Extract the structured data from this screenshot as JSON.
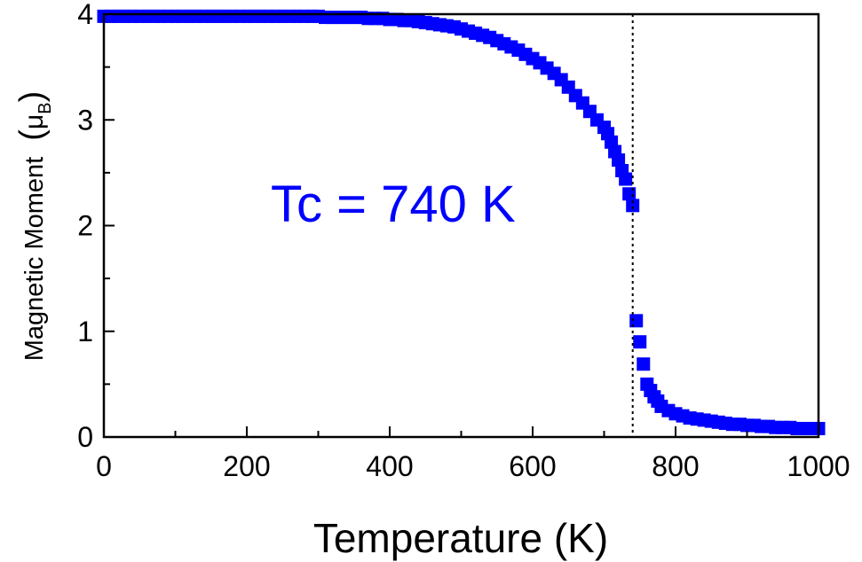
{
  "chart_data": {
    "type": "scatter",
    "title": "",
    "xlabel": "Temperature (K)",
    "ylabel": "Magnetic Moment",
    "ylabel_unit_symbol": "μ",
    "ylabel_unit_subscript": "B",
    "xlim": [
      0,
      1000
    ],
    "ylim": [
      0,
      4
    ],
    "x_ticks": [
      "0",
      "200",
      "400",
      "600",
      "800",
      "1000"
    ],
    "y_ticks": [
      "0",
      "1",
      "2",
      "3",
      "4"
    ],
    "grid": false,
    "legend": "none",
    "annotation": "Tc = 740 K",
    "reference_line_x": 740,
    "marker_color": "#0000ff",
    "series": [
      {
        "x": [
          0,
          10,
          20,
          30,
          40,
          50,
          60,
          70,
          80,
          90,
          100,
          110,
          120,
          130,
          140,
          150,
          160,
          170,
          180,
          190,
          200,
          210,
          220,
          230,
          240,
          250,
          260,
          270,
          280,
          290,
          300,
          310,
          320,
          330,
          340,
          350,
          360,
          370,
          380,
          390,
          400,
          410,
          420,
          430,
          440,
          450,
          460,
          470,
          480,
          490,
          500,
          510,
          520,
          530,
          540,
          550,
          560,
          570,
          580,
          590,
          600,
          610,
          620,
          630,
          640,
          650,
          660,
          670,
          680,
          690,
          700,
          705,
          710,
          715,
          720,
          725,
          730,
          735,
          740,
          745,
          750,
          755,
          760,
          765,
          770,
          775,
          780,
          790,
          800,
          810,
          820,
          830,
          840,
          850,
          860,
          870,
          880,
          890,
          900,
          910,
          920,
          930,
          940,
          950,
          960,
          970,
          980,
          990,
          1000
        ],
        "y": [
          3.98,
          3.98,
          3.98,
          3.98,
          3.98,
          3.98,
          3.98,
          3.98,
          3.98,
          3.98,
          3.98,
          3.98,
          3.98,
          3.98,
          3.98,
          3.98,
          3.98,
          3.98,
          3.98,
          3.98,
          3.98,
          3.98,
          3.98,
          3.98,
          3.98,
          3.98,
          3.98,
          3.98,
          3.98,
          3.98,
          3.98,
          3.97,
          3.97,
          3.97,
          3.97,
          3.97,
          3.97,
          3.96,
          3.96,
          3.96,
          3.95,
          3.95,
          3.94,
          3.94,
          3.93,
          3.92,
          3.91,
          3.9,
          3.89,
          3.88,
          3.86,
          3.84,
          3.82,
          3.8,
          3.78,
          3.75,
          3.72,
          3.69,
          3.66,
          3.62,
          3.58,
          3.54,
          3.49,
          3.44,
          3.38,
          3.31,
          3.23,
          3.16,
          3.08,
          3.0,
          2.93,
          2.87,
          2.79,
          2.7,
          2.62,
          2.52,
          2.44,
          2.3,
          2.19,
          1.1,
          0.9,
          0.69,
          0.5,
          0.44,
          0.38,
          0.34,
          0.29,
          0.25,
          0.22,
          0.2,
          0.18,
          0.17,
          0.16,
          0.15,
          0.14,
          0.13,
          0.12,
          0.12,
          0.11,
          0.11,
          0.1,
          0.1,
          0.09,
          0.09,
          0.09,
          0.08,
          0.08,
          0.08,
          0.08
        ]
      }
    ]
  }
}
